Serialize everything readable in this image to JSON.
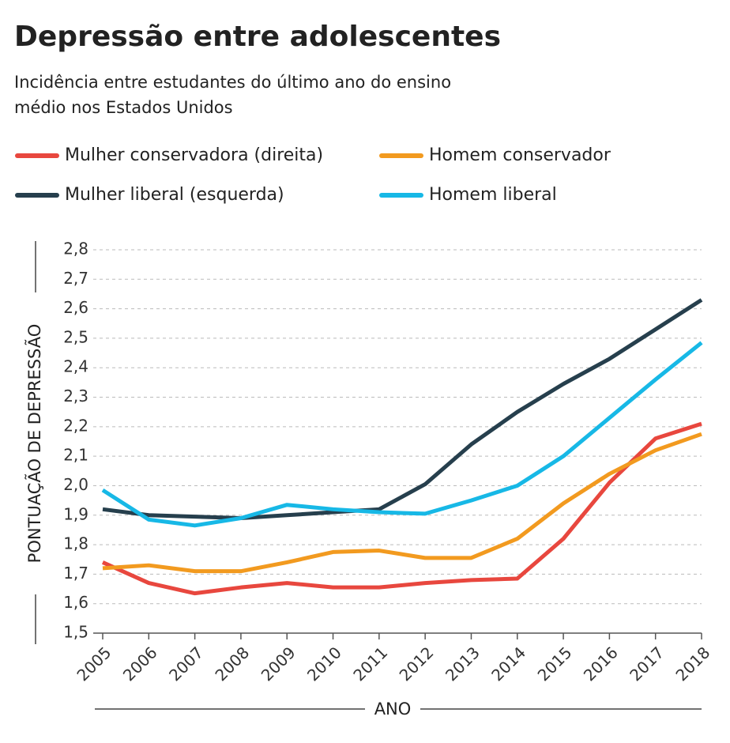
{
  "chart_data": {
    "type": "line",
    "title": "Depressão entre adolescentes",
    "subtitle": [
      "Incidência entre estudantes do último ano do ensino",
      "médio nos Estados Unidos"
    ],
    "ylabel": "PONTUAÇÃO DE DEPRESSÃO",
    "xlabel": "ANO",
    "categories": [
      "2005",
      "2006",
      "2007",
      "2008",
      "2009",
      "2010",
      "2011",
      "2012",
      "2013",
      "2014",
      "2015",
      "2016",
      "2017",
      "2018"
    ],
    "series": [
      {
        "name": "Mulher conservadora (direita)",
        "color": "#e8473e",
        "values": [
          1.74,
          1.67,
          1.635,
          1.655,
          1.67,
          1.655,
          1.655,
          1.67,
          1.68,
          1.685,
          1.82,
          2.01,
          2.16,
          2.21
        ]
      },
      {
        "name": "Homem conservador",
        "color": "#f29a1f",
        "values": [
          1.72,
          1.73,
          1.71,
          1.71,
          1.74,
          1.775,
          1.78,
          1.755,
          1.755,
          1.82,
          1.94,
          2.04,
          2.12,
          2.175
        ]
      },
      {
        "name": "Mulher liberal (esquerda)",
        "color": "#263f4d",
        "values": [
          1.92,
          1.9,
          1.895,
          1.89,
          1.9,
          1.91,
          1.92,
          2.005,
          2.14,
          2.25,
          2.345,
          2.43,
          2.53,
          2.63
        ]
      },
      {
        "name": "Homem liberal",
        "color": "#17b8e6",
        "values": [
          1.985,
          1.885,
          1.865,
          1.89,
          1.935,
          1.92,
          1.91,
          1.905,
          1.95,
          2.0,
          2.1,
          2.23,
          2.36,
          2.485
        ]
      }
    ],
    "ylim": [
      1.5,
      2.8
    ],
    "yticks": [
      {
        "value": 1.5,
        "label": "1,5"
      },
      {
        "value": 1.6,
        "label": "1,6"
      },
      {
        "value": 1.7,
        "label": "1,7"
      },
      {
        "value": 1.8,
        "label": "1,8"
      },
      {
        "value": 1.9,
        "label": "1,9"
      },
      {
        "value": 2.0,
        "label": "2,0"
      },
      {
        "value": 2.1,
        "label": "2,1"
      },
      {
        "value": 2.2,
        "label": "2,2"
      },
      {
        "value": 2.3,
        "label": "2,3"
      },
      {
        "value": 2.4,
        "label": "2,4"
      },
      {
        "value": 2.5,
        "label": "2,5"
      },
      {
        "value": 2.6,
        "label": "2,6"
      },
      {
        "value": 2.7,
        "label": "2,7"
      },
      {
        "value": 2.8,
        "label": "2,8"
      }
    ],
    "grid": true
  }
}
